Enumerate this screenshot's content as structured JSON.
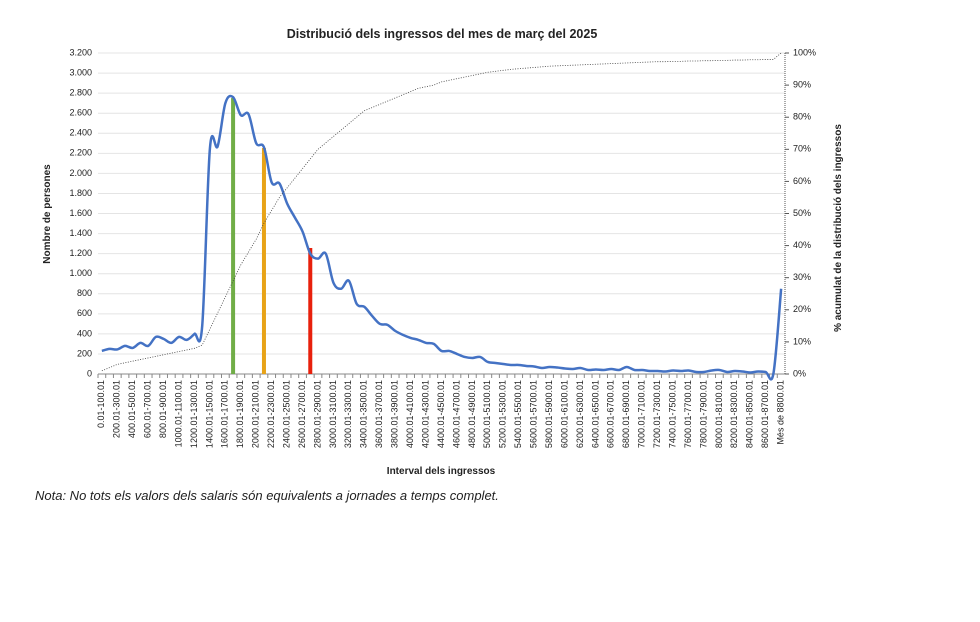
{
  "chart_data": {
    "type": "line",
    "title": "Distribució dels ingressos del mes de març del 2025",
    "x_label": "Interval dels ingressos",
    "y_label": "Nombre de persones",
    "y2_label": "% acumulat de la distribució dels ingressos",
    "categories": [
      "0.01-100.01",
      null,
      "200.01-300.01",
      null,
      "400.01-500.01",
      null,
      "600.01-700.01",
      null,
      "800.01-900.01",
      null,
      "1000.01-1100.01",
      null,
      "1200.01-1300.01",
      null,
      "1400.01-1500.01",
      null,
      "1600.01-1700.01",
      null,
      "1800.01-1900.01",
      null,
      "2000.01-2100.01",
      null,
      "2200.01-2300.01",
      null,
      "2400.01-2500.01",
      null,
      "2600.01-2700.01",
      null,
      "2800.01-2900.01",
      null,
      "3000.01-3100.01",
      null,
      "3200.01-3300.01",
      null,
      "3400.01-3500.01",
      null,
      "3600.01-3700.01",
      null,
      "3800.01-3900.01",
      null,
      "4000.01-4100.01",
      null,
      "4200.01-4300.01",
      null,
      "4400.01-4500.01",
      null,
      "4600.01-4700.01",
      null,
      "4800.01-4900.01",
      null,
      "5000.01-5100.01",
      null,
      "5200.01-5300.01",
      null,
      "5400.01-5500.01",
      null,
      "5600.01-5700.01",
      null,
      "5800.01-5900.01",
      null,
      "6000.01-6100.01",
      null,
      "6200.01-6300.01",
      null,
      "6400.01-6500.01",
      null,
      "6600.01-6700.01",
      null,
      "6800.01-6900.01",
      null,
      "7000.01-7100.01",
      null,
      "7200.01-7300.01",
      null,
      "7400.01-7500.01",
      null,
      "7600.01-7700.01",
      null,
      "7800.01-7900.01",
      null,
      "8000.01-8100.01",
      null,
      "8200.01-8300.01",
      null,
      "8400.01-8500.01",
      null,
      "8600.01-8700.01",
      null,
      "Més de 8800.01"
    ],
    "series": [
      {
        "type": "line",
        "smooth": true,
        "color": "#4472c4",
        "values": [
          230,
          250,
          245,
          280,
          260,
          310,
          280,
          370,
          350,
          310,
          370,
          340,
          400,
          480,
          2250,
          2270,
          2700,
          2760,
          2580,
          2590,
          2300,
          2260,
          1910,
          1900,
          1700,
          1560,
          1420,
          1200,
          1150,
          1200,
          910,
          850,
          930,
          700,
          670,
          580,
          500,
          490,
          430,
          390,
          360,
          340,
          310,
          300,
          230,
          230,
          200,
          170,
          160,
          170,
          120,
          110,
          100,
          90,
          90,
          80,
          75,
          60,
          70,
          65,
          55,
          50,
          60,
          40,
          45,
          40,
          50,
          40,
          70,
          40,
          40,
          30,
          30,
          25,
          35,
          30,
          35,
          20,
          20,
          35,
          40,
          20,
          30,
          25,
          15,
          25,
          20,
          5,
          850
        ]
      },
      {
        "type": "line",
        "axis": "y2",
        "dotted": true,
        "color": "#404040",
        "values": [
          1,
          2,
          3,
          3.5,
          4,
          4.5,
          5,
          5.5,
          6,
          6.5,
          7,
          7.5,
          8,
          9,
          14,
          19,
          24,
          29,
          34,
          38,
          42,
          47,
          51,
          55,
          58,
          61,
          64,
          67,
          70,
          72,
          74,
          76,
          78,
          80,
          82,
          83,
          84,
          85,
          86,
          87,
          88,
          89,
          89.5,
          90,
          91,
          91.5,
          92,
          92.5,
          93,
          93.5,
          94,
          94.3,
          94.6,
          94.9,
          95.1,
          95.3,
          95.5,
          95.7,
          95.9,
          96,
          96.1,
          96.2,
          96.3,
          96.4,
          96.5,
          96.6,
          96.7,
          96.8,
          96.9,
          97,
          97.1,
          97.2,
          97.3,
          97.3,
          97.4,
          97.4,
          97.5,
          97.5,
          97.6,
          97.6,
          97.7,
          97.7,
          97.8,
          97.8,
          97.9,
          97.9,
          98,
          98,
          100
        ]
      },
      {
        "type": "bar",
        "color": "#70ad47",
        "values": [
          null,
          null,
          null,
          null,
          null,
          null,
          null,
          null,
          null,
          null,
          null,
          null,
          null,
          null,
          null,
          null,
          null,
          2751,
          null,
          null,
          null,
          null,
          null,
          null,
          null,
          null,
          null,
          null,
          null,
          null,
          null,
          null,
          null,
          null,
          null,
          null,
          null,
          null,
          null,
          null,
          null,
          null,
          null,
          null,
          null,
          null,
          null,
          null,
          null,
          null,
          null,
          null,
          null,
          null,
          null,
          null,
          null,
          null,
          null,
          null,
          null,
          null,
          null,
          null,
          null,
          null,
          null,
          null,
          null,
          null,
          null,
          null,
          null,
          null,
          null,
          null,
          null,
          null,
          null,
          null,
          null,
          null,
          null,
          null,
          null,
          null,
          null,
          null,
          null
        ]
      },
      {
        "type": "bar",
        "color": "#e8a317",
        "values": [
          null,
          null,
          null,
          null,
          null,
          null,
          null,
          null,
          null,
          null,
          null,
          null,
          null,
          null,
          null,
          null,
          null,
          null,
          null,
          null,
          null,
          2253,
          null,
          null,
          null,
          null,
          null,
          null,
          null,
          null,
          null,
          null,
          null,
          null,
          null,
          null,
          null,
          null,
          null,
          null,
          null,
          null,
          null,
          null,
          null,
          null,
          null,
          null,
          null,
          null,
          null,
          null,
          null,
          null,
          null,
          null,
          null,
          null,
          null,
          null,
          null,
          null,
          null,
          null,
          null,
          null,
          null,
          null,
          null,
          null,
          null,
          null,
          null,
          null,
          null,
          null,
          null,
          null,
          null,
          null,
          null,
          null,
          null,
          null,
          null,
          null,
          null,
          null,
          null
        ]
      },
      {
        "type": "bar",
        "color": "#e8200c",
        "values": [
          null,
          null,
          null,
          null,
          null,
          null,
          null,
          null,
          null,
          null,
          null,
          null,
          null,
          null,
          null,
          null,
          null,
          null,
          null,
          null,
          null,
          null,
          null,
          null,
          null,
          null,
          null,
          1256,
          null,
          null,
          null,
          null,
          null,
          null,
          null,
          null,
          null,
          null,
          null,
          null,
          null,
          null,
          null,
          null,
          null,
          null,
          null,
          null,
          null,
          null,
          null,
          null,
          null,
          null,
          null,
          null,
          null,
          null,
          null,
          null,
          null,
          null,
          null,
          null,
          null,
          null,
          null,
          null,
          null,
          null,
          null,
          null,
          null,
          null,
          null,
          null,
          null,
          null,
          null,
          null,
          null,
          null,
          null,
          null,
          null,
          null,
          null,
          null,
          null
        ]
      }
    ],
    "ylim": [
      0,
      3200
    ],
    "yticks": [
      0,
      200,
      400,
      600,
      800,
      {
        "value": 1000,
        "label": "1.000"
      },
      {
        "value": 1200,
        "label": "1.200"
      },
      {
        "value": 1400,
        "label": "1.400"
      },
      {
        "value": 1600,
        "label": "1.600"
      },
      {
        "value": 1800,
        "label": "1.800"
      },
      {
        "value": 2000,
        "label": "2.000"
      },
      {
        "value": 2200,
        "label": "2.200"
      },
      {
        "value": 2400,
        "label": "2.400"
      },
      {
        "value": 2600,
        "label": "2.600"
      },
      {
        "value": 2800,
        "label": "2.800"
      },
      {
        "value": 3000,
        "label": "3.000"
      },
      {
        "value": 3200,
        "label": "3.200"
      }
    ],
    "y2lim": [
      0,
      100
    ],
    "y2ticks": [
      {
        "value": 0,
        "label": "0%"
      },
      {
        "value": 10,
        "label": "10%"
      },
      {
        "value": 20,
        "label": "20%"
      },
      {
        "value": 30,
        "label": "30%"
      },
      {
        "value": 40,
        "label": "40%"
      },
      {
        "value": 50,
        "label": "50%"
      },
      {
        "value": 60,
        "label": "60%"
      },
      {
        "value": 70,
        "label": "70%"
      },
      {
        "value": 80,
        "label": "80%"
      },
      {
        "value": 90,
        "label": "90%"
      },
      {
        "value": 100,
        "label": "100%"
      }
    ],
    "grid": true
  },
  "note": "Nota: No tots els valors dels salaris són equivalents a jornades a temps complet."
}
